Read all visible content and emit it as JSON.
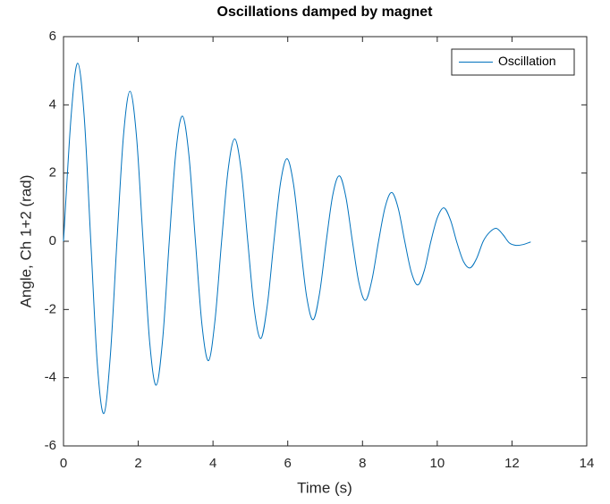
{
  "chart_data": {
    "type": "line",
    "title": "Oscillations damped by magnet",
    "xlabel": "Time (s)",
    "ylabel": "Angle, Ch 1+2 (rad)",
    "x": [
      0,
      0.205,
      0.38,
      0.555,
      0.73,
      0.905,
      1.08,
      1.255,
      1.43,
      1.605,
      1.78,
      1.955,
      2.13,
      2.305,
      2.48,
      2.655,
      2.83,
      3.005,
      3.18,
      3.355,
      3.53,
      3.705,
      3.88,
      4.055,
      4.23,
      4.405,
      4.58,
      4.755,
      4.93,
      5.105,
      5.28,
      5.455,
      5.63,
      5.805,
      5.98,
      6.155,
      6.33,
      6.505,
      6.68,
      6.855,
      7.03,
      7.205,
      7.38,
      7.555,
      7.73,
      7.905,
      8.08,
      8.255,
      8.43,
      8.605,
      8.78,
      8.955,
      9.13,
      9.305,
      9.48,
      9.655,
      9.83,
      10.005,
      10.18,
      10.355,
      10.53,
      10.705,
      10.88,
      11.055,
      11.23,
      11.405,
      11.58,
      11.755,
      11.93,
      12.105,
      12.28,
      12.5
    ],
    "series": [
      {
        "name": "Oscillation",
        "color": "#0072bd",
        "values": [
          0,
          3.69,
          5.22,
          3.64,
          0,
          -3.6,
          -5.05,
          -3.33,
          0,
          3.1,
          4.4,
          3.05,
          0,
          -2.95,
          -4.22,
          -2.85,
          0,
          2.6,
          3.67,
          2.53,
          0,
          -2.45,
          -3.5,
          -2.3,
          0,
          2.1,
          3.0,
          2.07,
          0,
          -2.0,
          -2.85,
          -1.86,
          0,
          1.7,
          2.42,
          1.67,
          0,
          -1.62,
          -2.3,
          -1.5,
          0,
          1.36,
          1.92,
          1.3,
          0,
          -1.22,
          -1.73,
          -1.12,
          0,
          1.0,
          1.43,
          0.97,
          0,
          -0.9,
          -1.28,
          -0.85,
          0,
          0.7,
          0.98,
          0.62,
          -0.05,
          -0.6,
          -0.78,
          -0.5,
          0,
          0.27,
          0.38,
          0.2,
          -0.05,
          -0.12,
          -0.1,
          -0.02
        ]
      }
    ],
    "xlim": [
      0,
      14
    ],
    "xticks": [
      0,
      2,
      4,
      6,
      8,
      10,
      12,
      14
    ],
    "ylim": [
      -6,
      6
    ],
    "yticks": [
      -6,
      -4,
      -2,
      0,
      2,
      4,
      6
    ],
    "grid": false,
    "legend": "top-right"
  }
}
